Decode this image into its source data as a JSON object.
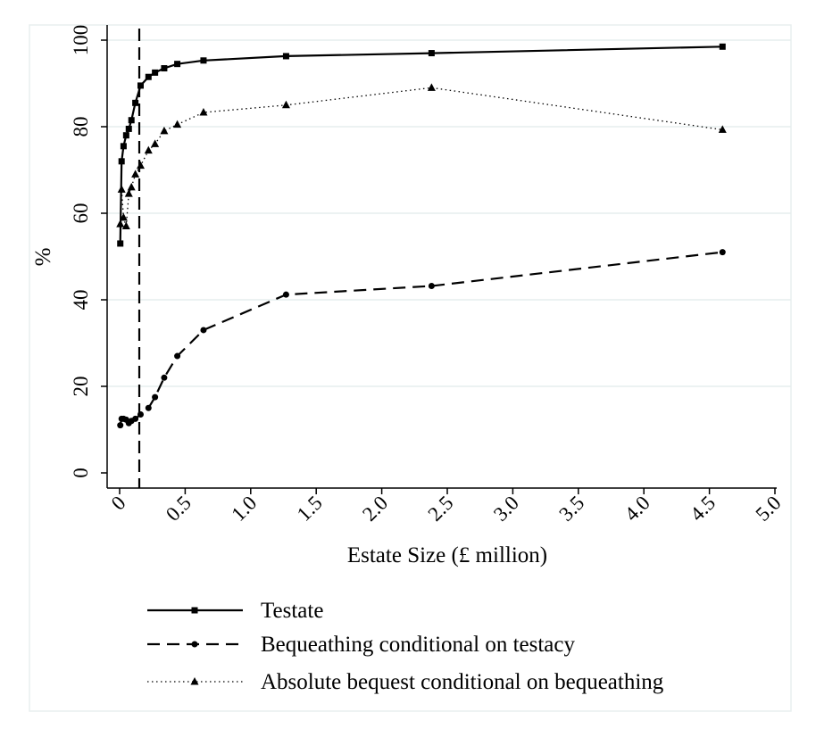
{
  "chart_data": {
    "type": "line",
    "xlabel": "Estate Size (£ million)",
    "ylabel": "%",
    "xlim": [
      0,
      5.0
    ],
    "ylim": [
      0,
      100
    ],
    "x_ticks": [
      "0",
      "0.5",
      "1.0",
      "1.5",
      "2.0",
      "2.5",
      "3.0",
      "3.5",
      "4.0",
      "4.5",
      "5.0"
    ],
    "x_tick_values": [
      0,
      0.5,
      1.0,
      1.5,
      2.0,
      2.5,
      3.0,
      3.5,
      4.0,
      4.5,
      5.0
    ],
    "y_ticks": [
      "0",
      "20",
      "40",
      "60",
      "80",
      "100"
    ],
    "y_tick_values": [
      0,
      20,
      40,
      60,
      80,
      100
    ],
    "grid": "horizontal",
    "legend_placement": "bottom",
    "reference_line_x": 0.15,
    "series": [
      {
        "name": "Testate",
        "line_style": "solid",
        "marker": "square",
        "color": "#000000",
        "x": [
          0.005,
          0.015,
          0.03,
          0.05,
          0.07,
          0.09,
          0.12,
          0.16,
          0.22,
          0.27,
          0.34,
          0.44,
          0.64,
          1.27,
          2.38,
          4.6
        ],
        "y": [
          53,
          72,
          75.5,
          78,
          79.5,
          81.5,
          85.5,
          89.5,
          91.5,
          92.5,
          93.5,
          94.5,
          95.3,
          96.3,
          97,
          98.5
        ]
      },
      {
        "name": "Bequeathing conditional on testacy",
        "line_style": "dashed",
        "marker": "circle",
        "color": "#000000",
        "x": [
          0.005,
          0.015,
          0.03,
          0.05,
          0.07,
          0.09,
          0.12,
          0.16,
          0.22,
          0.27,
          0.34,
          0.44,
          0.64,
          1.27,
          2.38,
          4.6
        ],
        "y": [
          11,
          12.5,
          12.5,
          12.3,
          11.5,
          12,
          12.5,
          13.5,
          15,
          17.5,
          22,
          27,
          33,
          41.2,
          43.2,
          51
        ]
      },
      {
        "name": "Absolute bequest conditional on bequeathing",
        "line_style": "dotted",
        "marker": "triangle",
        "color": "#000000",
        "x": [
          0.005,
          0.015,
          0.03,
          0.05,
          0.07,
          0.09,
          0.12,
          0.16,
          0.22,
          0.27,
          0.34,
          0.44,
          0.64,
          1.27,
          2.38,
          4.6
        ],
        "y": [
          57.5,
          65.5,
          59,
          57,
          64.5,
          66,
          69,
          71,
          74.5,
          76,
          79,
          80.5,
          83.3,
          85,
          89,
          79.3
        ]
      }
    ]
  }
}
